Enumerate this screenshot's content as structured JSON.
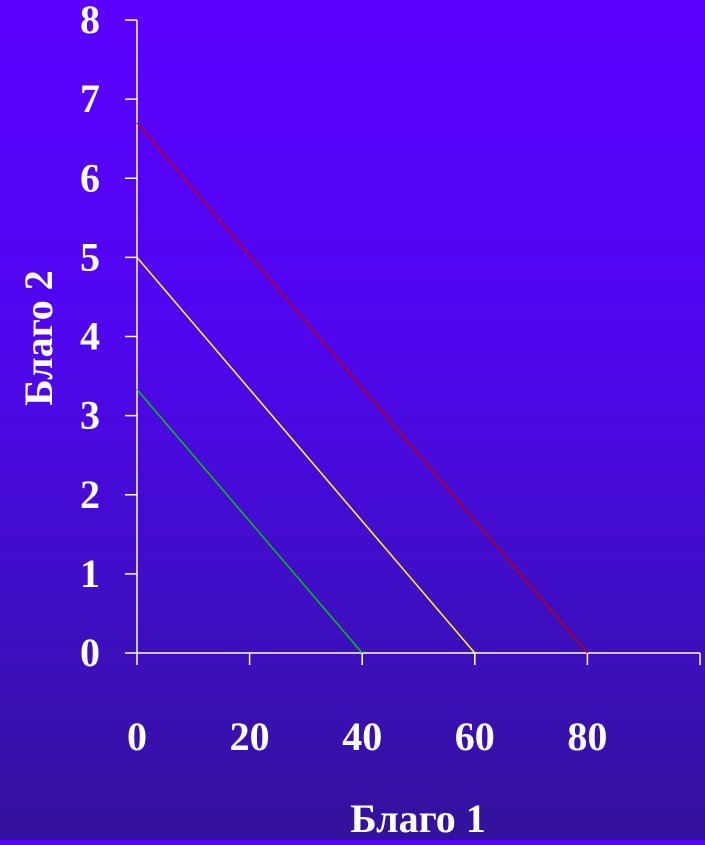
{
  "chart_data": {
    "type": "line",
    "xlabel": "Благо 1",
    "ylabel": "Благо 2",
    "xlim": [
      0,
      100
    ],
    "ylim": [
      0,
      8
    ],
    "x_ticks": [
      0,
      20,
      40,
      60,
      80
    ],
    "y_ticks": [
      0,
      1,
      2,
      3,
      4,
      5,
      6,
      7,
      8
    ],
    "grid": false,
    "series": [
      {
        "x": [
          0,
          40
        ],
        "y": [
          3.33,
          0
        ],
        "color": "#00c800"
      },
      {
        "x": [
          0,
          60
        ],
        "y": [
          5,
          0
        ],
        "color": "#ffff00"
      },
      {
        "x": [
          0,
          80
        ],
        "y": [
          6.7,
          0
        ],
        "color": "#c00000"
      }
    ]
  },
  "colors": {
    "axis": "#ffffff",
    "text": "#ffffff"
  }
}
